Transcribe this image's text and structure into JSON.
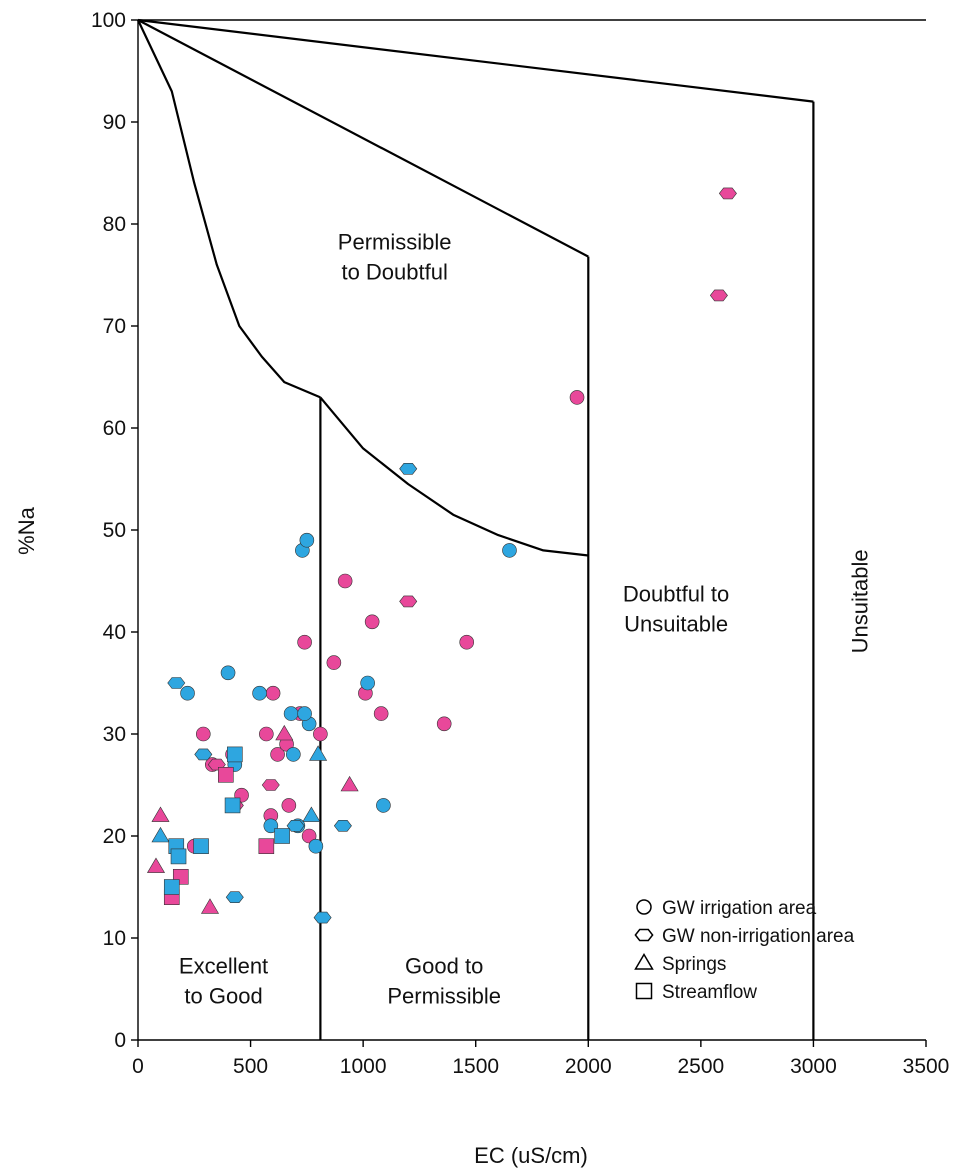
{
  "chart_data": {
    "type": "scatter",
    "title": "",
    "xlabel": "EC (uS/cm)",
    "ylabel": "%Na",
    "xlim": [
      0,
      3500
    ],
    "ylim": [
      0,
      100
    ],
    "x_ticks": [
      0,
      500,
      1000,
      1500,
      2000,
      2500,
      3000,
      3500
    ],
    "y_ticks": [
      0,
      10,
      20,
      30,
      40,
      50,
      60,
      70,
      80,
      90,
      100
    ],
    "grid": false,
    "legend_position": "bottom-right",
    "colors": {
      "pink": "#E8489A",
      "blue": "#2EA6E0",
      "edge": "#333333",
      "line": "#000000"
    },
    "legend": [
      {
        "marker": "circle",
        "label": "GW irrigation area"
      },
      {
        "marker": "hexagon",
        "label": "GW non-irrigation area"
      },
      {
        "marker": "triangle",
        "label": "Springs"
      },
      {
        "marker": "square",
        "label": "Streamflow"
      }
    ],
    "regions": [
      {
        "lines": [
          "Permissible",
          "to Doubtful"
        ],
        "x": 1140,
        "y": 77.5,
        "rotate": false
      },
      {
        "lines": [
          "Doubtful to",
          "Unsuitable"
        ],
        "x": 2390,
        "y": 43,
        "rotate": false
      },
      {
        "lines": [
          "Unsuitable"
        ],
        "x": 3210,
        "y": 43,
        "rotate": true
      },
      {
        "lines": [
          "Excellent",
          "to Good"
        ],
        "x": 380,
        "y": 6.5,
        "rotate": false
      },
      {
        "lines": [
          "Good to",
          "Permissible"
        ],
        "x": 1360,
        "y": 6.5,
        "rotate": false
      }
    ],
    "boundaries": [
      {
        "points": [
          [
            0,
            100
          ],
          [
            150,
            93
          ],
          [
            250,
            84
          ],
          [
            350,
            76
          ],
          [
            450,
            70
          ],
          [
            550,
            67
          ],
          [
            650,
            64.5
          ],
          [
            810,
            63
          ]
        ]
      },
      {
        "points": [
          [
            810,
            63
          ],
          [
            1000,
            58
          ],
          [
            1200,
            54.5
          ],
          [
            1400,
            51.5
          ],
          [
            1600,
            49.5
          ],
          [
            1800,
            48
          ],
          [
            2000,
            47.5
          ]
        ]
      },
      {
        "points": [
          [
            0,
            100
          ],
          [
            2000,
            76.8
          ]
        ]
      },
      {
        "points": [
          [
            0,
            100
          ],
          [
            3000,
            92
          ]
        ]
      },
      {
        "points": [
          [
            810,
            63
          ],
          [
            810,
            0
          ]
        ]
      },
      {
        "points": [
          [
            2000,
            76.8
          ],
          [
            2000,
            0
          ]
        ]
      },
      {
        "points": [
          [
            3000,
            92
          ],
          [
            3000,
            0
          ]
        ]
      }
    ],
    "series": [
      {
        "marker": "circle",
        "color": "pink",
        "points": [
          [
            290,
            30
          ],
          [
            330,
            27
          ],
          [
            420,
            28
          ],
          [
            460,
            24
          ],
          [
            570,
            30
          ],
          [
            600,
            34
          ],
          [
            620,
            28
          ],
          [
            670,
            23
          ],
          [
            720,
            32
          ],
          [
            740,
            39
          ],
          [
            760,
            20
          ],
          [
            810,
            30
          ],
          [
            870,
            37
          ],
          [
            920,
            45
          ],
          [
            1010,
            34
          ],
          [
            1040,
            41
          ],
          [
            1080,
            32
          ],
          [
            1360,
            31
          ],
          [
            1460,
            39
          ],
          [
            1950,
            63
          ],
          [
            250,
            19
          ],
          [
            590,
            22
          ],
          [
            660,
            29
          ]
        ]
      },
      {
        "marker": "circle",
        "color": "blue",
        "points": [
          [
            220,
            34
          ],
          [
            400,
            36
          ],
          [
            430,
            27
          ],
          [
            540,
            34
          ],
          [
            590,
            21
          ],
          [
            680,
            32
          ],
          [
            690,
            28
          ],
          [
            710,
            21
          ],
          [
            730,
            48
          ],
          [
            750,
            49
          ],
          [
            760,
            31
          ],
          [
            790,
            19
          ],
          [
            1020,
            35
          ],
          [
            1090,
            23
          ],
          [
            1650,
            48
          ],
          [
            740,
            32
          ]
        ]
      },
      {
        "marker": "hexagon",
        "color": "pink",
        "points": [
          [
            350,
            27
          ],
          [
            590,
            25
          ],
          [
            1200,
            43
          ],
          [
            2580,
            73
          ],
          [
            2620,
            83
          ],
          [
            430,
            23
          ]
        ]
      },
      {
        "marker": "hexagon",
        "color": "blue",
        "points": [
          [
            170,
            35
          ],
          [
            290,
            28
          ],
          [
            430,
            14
          ],
          [
            820,
            12
          ],
          [
            910,
            21
          ],
          [
            1200,
            56
          ],
          [
            700,
            21
          ]
        ]
      },
      {
        "marker": "triangle",
        "color": "pink",
        "points": [
          [
            80,
            17
          ],
          [
            100,
            22
          ],
          [
            320,
            13
          ],
          [
            650,
            30
          ],
          [
            940,
            25
          ]
        ]
      },
      {
        "marker": "triangle",
        "color": "blue",
        "points": [
          [
            100,
            20
          ],
          [
            770,
            22
          ],
          [
            800,
            28
          ]
        ]
      },
      {
        "marker": "square",
        "color": "pink",
        "points": [
          [
            150,
            14
          ],
          [
            190,
            16
          ],
          [
            390,
            26
          ],
          [
            570,
            19
          ]
        ]
      },
      {
        "marker": "square",
        "color": "blue",
        "points": [
          [
            150,
            15
          ],
          [
            170,
            19
          ],
          [
            180,
            18
          ],
          [
            280,
            19
          ],
          [
            420,
            23
          ],
          [
            430,
            28
          ],
          [
            640,
            20
          ]
        ]
      }
    ]
  }
}
